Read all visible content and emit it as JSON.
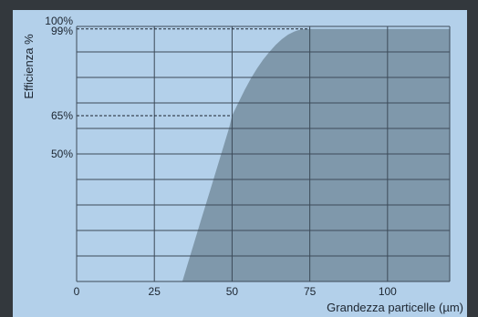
{
  "chart_data": {
    "type": "area",
    "title": "",
    "xlabel": "Grandezza particelle (µm)",
    "ylabel": "Efficienza %",
    "xlim": [
      0,
      120
    ],
    "ylim": [
      0,
      100
    ],
    "grid": true,
    "x_ticks": [
      0,
      25,
      50,
      75,
      100
    ],
    "x_tick_labels": [
      "0",
      "25",
      "50",
      "75",
      "100"
    ],
    "y_ticks": [
      {
        "value": 100,
        "label": "100%"
      },
      {
        "value": 99,
        "label": "99%"
      },
      {
        "value": 65,
        "label": "65%"
      },
      {
        "value": 50,
        "label": "50%"
      }
    ],
    "series": [
      {
        "x": [
          34,
          37,
          40,
          43,
          46,
          49,
          50,
          52,
          54,
          56,
          58,
          60,
          62,
          64,
          66,
          68,
          70,
          72,
          75,
          80,
          90,
          100,
          110,
          120
        ],
        "y": [
          0,
          12,
          24,
          36,
          48,
          60,
          65,
          70,
          75,
          79.5,
          83.5,
          87,
          90,
          92.7,
          95,
          96.8,
          98,
          98.8,
          99,
          99,
          99,
          99,
          99,
          99
        ]
      }
    ],
    "reference_lines": [
      {
        "x": 50,
        "y": 65
      },
      {
        "x": 75,
        "y": 99
      }
    ],
    "colors": {
      "background": "#b3d0ea",
      "fill": "#7f98ab",
      "grid": "#3c4a58",
      "frame": "#33383d"
    }
  }
}
